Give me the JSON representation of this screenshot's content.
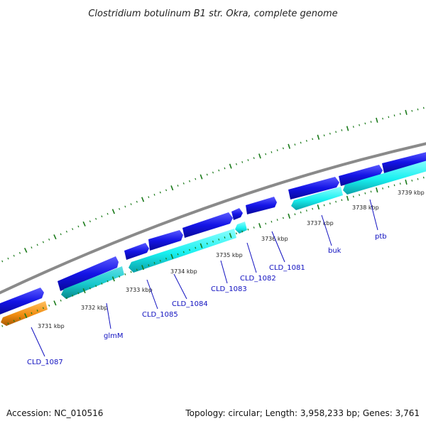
{
  "title": "Clostridium botulinum B1 str. Okra, complete genome",
  "footer": {
    "accession": "Accession: NC_010516",
    "summary": "Topology: circular; Length: 3,958,233 bp; Genes: 3,761"
  },
  "colors": {
    "backbone": "#8a8a8a",
    "forward_gene": "#1414e6",
    "reverse_gene": "#19f0f0",
    "reverse_gene_alt": "#16c8cc",
    "orange_gene": "#f08c10",
    "tick": "#1a7a1a",
    "label": "#1010c0"
  },
  "kbp_labels": [
    "3731 kbp",
    "3732 kbp",
    "3733 kbp",
    "3734 kbp",
    "3735 kbp",
    "3736 kbp",
    "3737 kbp",
    "3738 kbp",
    "3739 kbp"
  ],
  "gene_labels": [
    "CLD_1087",
    "glmM",
    "CLD_1085",
    "CLD_1084",
    "CLD_1083",
    "CLD_1082",
    "CLD_1081",
    "buk",
    "ptb"
  ]
}
